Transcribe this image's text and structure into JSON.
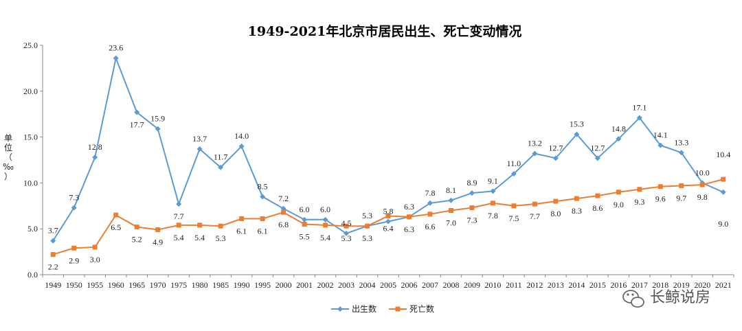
{
  "chart_data": {
    "type": "line",
    "title": "1949-2021年北京市居民出生、死亡变动情况",
    "ylabel": "单位（‰）",
    "xlabel": "",
    "ylim": [
      0,
      25
    ],
    "yticks": [
      "0.0",
      "5.0",
      "10.0",
      "15.0",
      "20.0",
      "25.0"
    ],
    "grid": false,
    "legend_position": "bottom",
    "categories": [
      "1949",
      "1950",
      "1955",
      "1960",
      "1965",
      "1970",
      "1975",
      "1980",
      "1985",
      "1990",
      "1995",
      "2000",
      "2001",
      "2002",
      "2003",
      "2004",
      "2005",
      "2006",
      "2007",
      "2008",
      "2009",
      "2010",
      "2011",
      "2012",
      "2013",
      "2014",
      "2015",
      "2016",
      "2017",
      "2018",
      "2019",
      "2020",
      "2021"
    ],
    "series": [
      {
        "name": "出生数",
        "color": "#5B9BD5",
        "marker": "diamond",
        "values": [
          3.7,
          7.3,
          12.8,
          23.6,
          17.7,
          15.9,
          7.7,
          13.7,
          11.7,
          14.0,
          8.5,
          7.2,
          6.0,
          6.0,
          4.5,
          5.3,
          5.8,
          6.3,
          7.8,
          8.1,
          8.9,
          9.1,
          11.0,
          13.2,
          12.7,
          15.3,
          12.7,
          14.8,
          17.1,
          14.1,
          13.3,
          10.0,
          9.0
        ],
        "labels": [
          "3.7",
          "7.3",
          "12.8",
          "23.6",
          "17.7",
          "15.9",
          "7.7",
          "13.7",
          "11.7",
          "14.0",
          "8.5",
          "7.2",
          "6.0",
          "6.0",
          "4.5",
          "5.3",
          "5.8",
          "6.3",
          "7.8",
          "8.1",
          "8.9",
          "9.1",
          "11.0",
          "13.2",
          "12.7",
          "15.3",
          "12.7",
          "14.8",
          "17.1",
          "14.1",
          "13.3",
          "10.0",
          "9.0"
        ]
      },
      {
        "name": "死亡数",
        "color": "#ED7D31",
        "marker": "square",
        "values": [
          2.2,
          2.9,
          3.0,
          6.5,
          5.2,
          4.9,
          5.4,
          5.4,
          5.3,
          6.1,
          6.1,
          6.8,
          5.5,
          5.4,
          5.3,
          5.3,
          6.4,
          6.3,
          6.6,
          7.0,
          7.3,
          7.8,
          7.5,
          7.7,
          8.0,
          8.3,
          8.6,
          9.0,
          9.3,
          9.6,
          9.7,
          9.8,
          10.4
        ],
        "labels": [
          "2.2",
          "2.9",
          "3.0",
          "6.5",
          "5.2",
          "4.9",
          "5.4",
          "5.4",
          "5.3",
          "6.1",
          "6.1",
          "6.8",
          "5.5",
          "5.4",
          "5.3",
          "5.3",
          "6.4",
          "6.3",
          "6.6",
          "7.0",
          "7.3",
          "7.8",
          "7.5",
          "7.7",
          "8.0",
          "8.3",
          "8.6",
          "9.0",
          "9.3",
          "9.6",
          "9.7",
          "9.8",
          "10.4"
        ]
      }
    ]
  },
  "watermark": {
    "text": "长鲸说房",
    "icon": "wechat-icon"
  }
}
